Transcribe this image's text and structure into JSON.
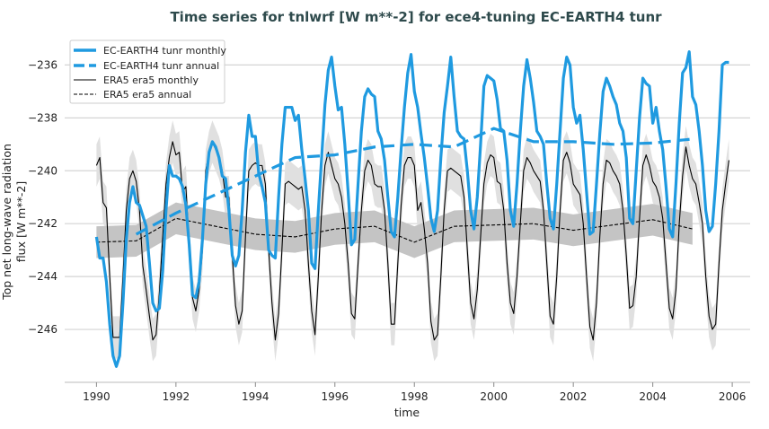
{
  "chart_data": {
    "type": "line",
    "title": "Time series for tnlwrf [W m**-2] for ece4-tuning EC-EARTH4 tunr",
    "xlabel": "time",
    "ylabel": [
      "Top net long-wave radiation",
      "flux [W m**-2]"
    ],
    "xlim": [
      1989.2,
      2006.45
    ],
    "ylim": [
      -248.0,
      -234.9
    ],
    "xticks": [
      1990,
      1992,
      1994,
      1996,
      1998,
      2000,
      2002,
      2004,
      2006
    ],
    "yticks": [
      -236,
      -238,
      -240,
      -242,
      -244,
      -246
    ],
    "ytick_labels": [
      "−236",
      "−238",
      "−240",
      "−242",
      "−244",
      "−246"
    ],
    "grid": "horizontal",
    "legend_placement": "top-left",
    "monthly_start_year": 1990,
    "series": [
      {
        "name": "EC-EARTH4 tunr monthly",
        "style": "solid-thick",
        "color": "#1f9ae0",
        "values": [
          -242.5,
          -243.3,
          -243.3,
          -244.2,
          -245.8,
          -247.0,
          -247.4,
          -247.0,
          -245.0,
          -242.6,
          -241.2,
          -240.6,
          -241.2,
          -241.3,
          -241.7,
          -242.1,
          -243.5,
          -245.0,
          -245.3,
          -245.2,
          -243.8,
          -241.5,
          -239.8,
          -240.2,
          -240.2,
          -240.3,
          -240.6,
          -241.3,
          -242.8,
          -244.7,
          -244.8,
          -244.2,
          -242.6,
          -240.5,
          -239.3,
          -238.9,
          -239.1,
          -239.5,
          -240.2,
          -240.3,
          -241.5,
          -243.2,
          -243.6,
          -243.2,
          -241.5,
          -239.3,
          -237.9,
          -238.7,
          -238.7,
          -240.1,
          -240.6,
          -241.2,
          -243.0,
          -243.2,
          -243.3,
          -241.0,
          -239.0,
          -237.6,
          -237.6,
          -237.6,
          -238.1,
          -237.9,
          -239.2,
          -240.3,
          -241.5,
          -243.5,
          -243.7,
          -241.5,
          -239.5,
          -237.5,
          -236.2,
          -235.7,
          -236.8,
          -237.7,
          -237.6,
          -239.0,
          -240.8,
          -242.8,
          -242.6,
          -240.5,
          -238.5,
          -237.2,
          -236.9,
          -237.1,
          -237.2,
          -238.5,
          -238.8,
          -239.6,
          -241.0,
          -242.3,
          -242.5,
          -241.0,
          -239.2,
          -237.6,
          -236.3,
          -235.6,
          -237.0,
          -237.6,
          -238.6,
          -239.5,
          -240.6,
          -241.8,
          -242.3,
          -241.5,
          -239.5,
          -237.8,
          -236.8,
          -235.7,
          -237.2,
          -238.5,
          -238.7,
          -238.8,
          -240.0,
          -241.5,
          -242.2,
          -241.0,
          -239.0,
          -236.8,
          -236.4,
          -236.5,
          -236.6,
          -237.3,
          -238.4,
          -238.5,
          -239.6,
          -241.5,
          -242.1,
          -240.5,
          -238.5,
          -236.8,
          -235.8,
          -236.5,
          -237.4,
          -238.5,
          -238.7,
          -239.0,
          -240.5,
          -241.8,
          -242.2,
          -240.5,
          -238.5,
          -236.5,
          -235.7,
          -236.0,
          -237.6,
          -238.2,
          -237.9,
          -239.2,
          -240.8,
          -242.4,
          -242.3,
          -240.5,
          -238.6,
          -237.0,
          -236.5,
          -236.8,
          -237.2,
          -237.5,
          -238.2,
          -238.5,
          -239.5,
          -241.8,
          -242.0,
          -240.0,
          -238.0,
          -236.5,
          -236.7,
          -236.8,
          -238.2,
          -237.6,
          -238.5,
          -239.2,
          -240.6,
          -242.2,
          -242.5,
          -240.5,
          -238.2,
          -236.3,
          -236.1,
          -235.5,
          -237.2,
          -237.5,
          -238.5,
          -239.8,
          -241.5,
          -242.3,
          -242.1,
          -240.5,
          -238.5,
          -236.0,
          -235.9,
          -235.9
        ]
      },
      {
        "name": "EC-EARTH4 tunr annual",
        "style": "dashed-thick",
        "color": "#1f9ae0",
        "x": [
          1991,
          1992,
          1993,
          1994,
          1995,
          1996,
          1997,
          1998,
          1999,
          2000,
          2001,
          2002,
          2003,
          2004,
          2005
        ],
        "values": [
          -242.4,
          -241.6,
          -240.9,
          -240.2,
          -239.5,
          -239.4,
          -239.1,
          -239.0,
          -239.1,
          -238.4,
          -238.9,
          -238.9,
          -239.0,
          -238.95,
          -238.8
        ]
      },
      {
        "name": "ERA5 era5 monthly",
        "style": "solid-thin",
        "color": "#000000",
        "band_std": 0.8,
        "values": [
          -239.8,
          -239.5,
          -241.2,
          -241.4,
          -244.0,
          -246.3,
          -246.3,
          -246.3,
          -244.0,
          -241.5,
          -240.3,
          -240.0,
          -240.4,
          -241.5,
          -243.6,
          -244.5,
          -245.5,
          -246.4,
          -246.2,
          -244.6,
          -242.5,
          -240.5,
          -239.5,
          -238.9,
          -239.4,
          -239.3,
          -240.8,
          -240.6,
          -242.8,
          -244.8,
          -245.3,
          -244.5,
          -243.0,
          -240.0,
          -239.3,
          -238.9,
          -239.2,
          -239.5,
          -240.0,
          -241.0,
          -241.0,
          -243.2,
          -245.1,
          -245.8,
          -245.3,
          -242.5,
          -240.0,
          -239.8,
          -239.7,
          -239.8,
          -239.8,
          -240.5,
          -243.0,
          -245.0,
          -246.4,
          -245.4,
          -243.0,
          -240.5,
          -240.4,
          -240.5,
          -240.6,
          -240.7,
          -240.6,
          -241.5,
          -243.5,
          -245.3,
          -246.2,
          -244.0,
          -241.5,
          -239.8,
          -239.3,
          -239.8,
          -240.3,
          -240.5,
          -241.0,
          -242.0,
          -243.5,
          -245.4,
          -245.6,
          -243.5,
          -241.5,
          -240.0,
          -239.6,
          -239.8,
          -240.5,
          -240.6,
          -240.6,
          -241.5,
          -243.5,
          -245.8,
          -245.8,
          -243.5,
          -241.3,
          -239.8,
          -239.5,
          -239.5,
          -239.8,
          -241.5,
          -241.2,
          -242.2,
          -243.5,
          -245.7,
          -246.4,
          -246.2,
          -244.0,
          -241.5,
          -240.0,
          -239.9,
          -240.0,
          -240.1,
          -240.2,
          -241.0,
          -243.0,
          -245.0,
          -245.6,
          -244.5,
          -242.5,
          -240.5,
          -239.7,
          -239.4,
          -239.5,
          -240.4,
          -240.5,
          -241.5,
          -243.5,
          -245.0,
          -245.4,
          -244.0,
          -242.0,
          -240.0,
          -239.5,
          -239.7,
          -240.0,
          -240.2,
          -240.4,
          -241.5,
          -243.5,
          -245.5,
          -245.8,
          -244.0,
          -241.5,
          -239.6,
          -239.3,
          -239.7,
          -240.5,
          -240.7,
          -240.9,
          -242.0,
          -244.0,
          -245.9,
          -246.4,
          -245.0,
          -242.5,
          -240.5,
          -239.6,
          -239.7,
          -240.0,
          -240.2,
          -240.5,
          -241.5,
          -243.2,
          -245.2,
          -245.1,
          -244.0,
          -241.8,
          -239.8,
          -239.4,
          -239.8,
          -240.4,
          -240.6,
          -241.0,
          -241.8,
          -243.5,
          -245.2,
          -245.6,
          -244.5,
          -242.0,
          -240.2,
          -239.1,
          -239.8,
          -240.3,
          -240.5,
          -241.2,
          -242.0,
          -244.0,
          -245.5,
          -246.0,
          -245.8,
          -243.5,
          -241.5,
          -240.5,
          -239.6
        ]
      },
      {
        "name": "ERA5 era5 annual",
        "style": "dashed-thin",
        "color": "#000000",
        "band_std": 0.6,
        "x": [
          1990,
          1991,
          1992,
          1993,
          1994,
          1995,
          1996,
          1997,
          1998,
          1999,
          2000,
          2001,
          2002,
          2003,
          2004,
          2005
        ],
        "values": [
          -242.7,
          -242.65,
          -241.8,
          -242.1,
          -242.4,
          -242.5,
          -242.2,
          -242.1,
          -242.7,
          -242.1,
          -242.05,
          -242.0,
          -242.25,
          -242.05,
          -241.85,
          -242.2
        ]
      }
    ]
  }
}
